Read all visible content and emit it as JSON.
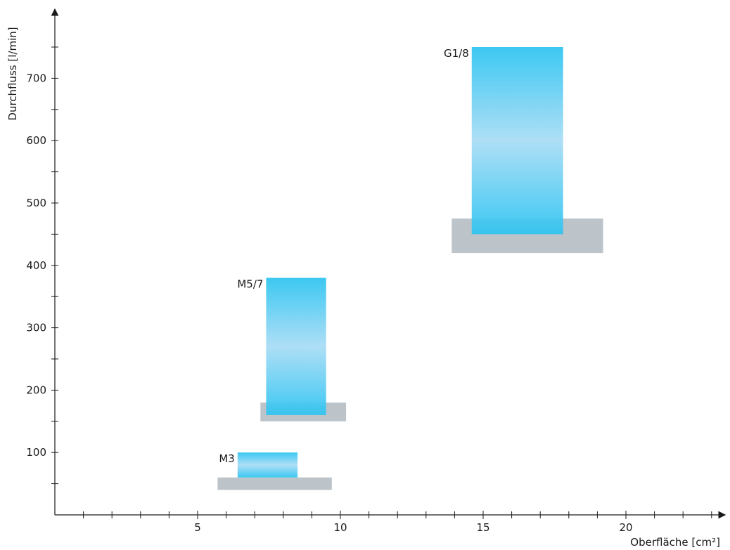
{
  "chart_data": {
    "type": "range-bar",
    "title": "",
    "xlabel": "Oberfläche [cm²]",
    "ylabel": "Durchfluss [l/min]",
    "xlim": [
      0,
      23
    ],
    "ylim": [
      0,
      800
    ],
    "x_ticks": [
      5,
      10,
      15,
      20
    ],
    "x_minor_step": 1,
    "y_ticks": [
      100,
      200,
      300,
      400,
      500,
      600,
      700
    ],
    "y_minor_step": 50,
    "grid": false,
    "colors": {
      "flow": "#2ec4f1",
      "flow_light": "#a8dcf5",
      "surface": "#bcc3c9",
      "axis": "#1a1a1a"
    },
    "series": [
      {
        "label": "M3",
        "flow_x": [
          6.4,
          8.5
        ],
        "flow_y": [
          60,
          100
        ],
        "surface_x": [
          5.7,
          9.7
        ],
        "surface_y": [
          40,
          60
        ]
      },
      {
        "label": "M5/7",
        "flow_x": [
          7.4,
          9.5
        ],
        "flow_y": [
          160,
          380
        ],
        "surface_x": [
          7.2,
          10.2
        ],
        "surface_y": [
          150,
          180
        ]
      },
      {
        "label": "G1/8",
        "flow_x": [
          14.6,
          17.8
        ],
        "flow_y": [
          450,
          750
        ],
        "surface_x": [
          13.9,
          19.2
        ],
        "surface_y": [
          420,
          475
        ]
      }
    ]
  }
}
